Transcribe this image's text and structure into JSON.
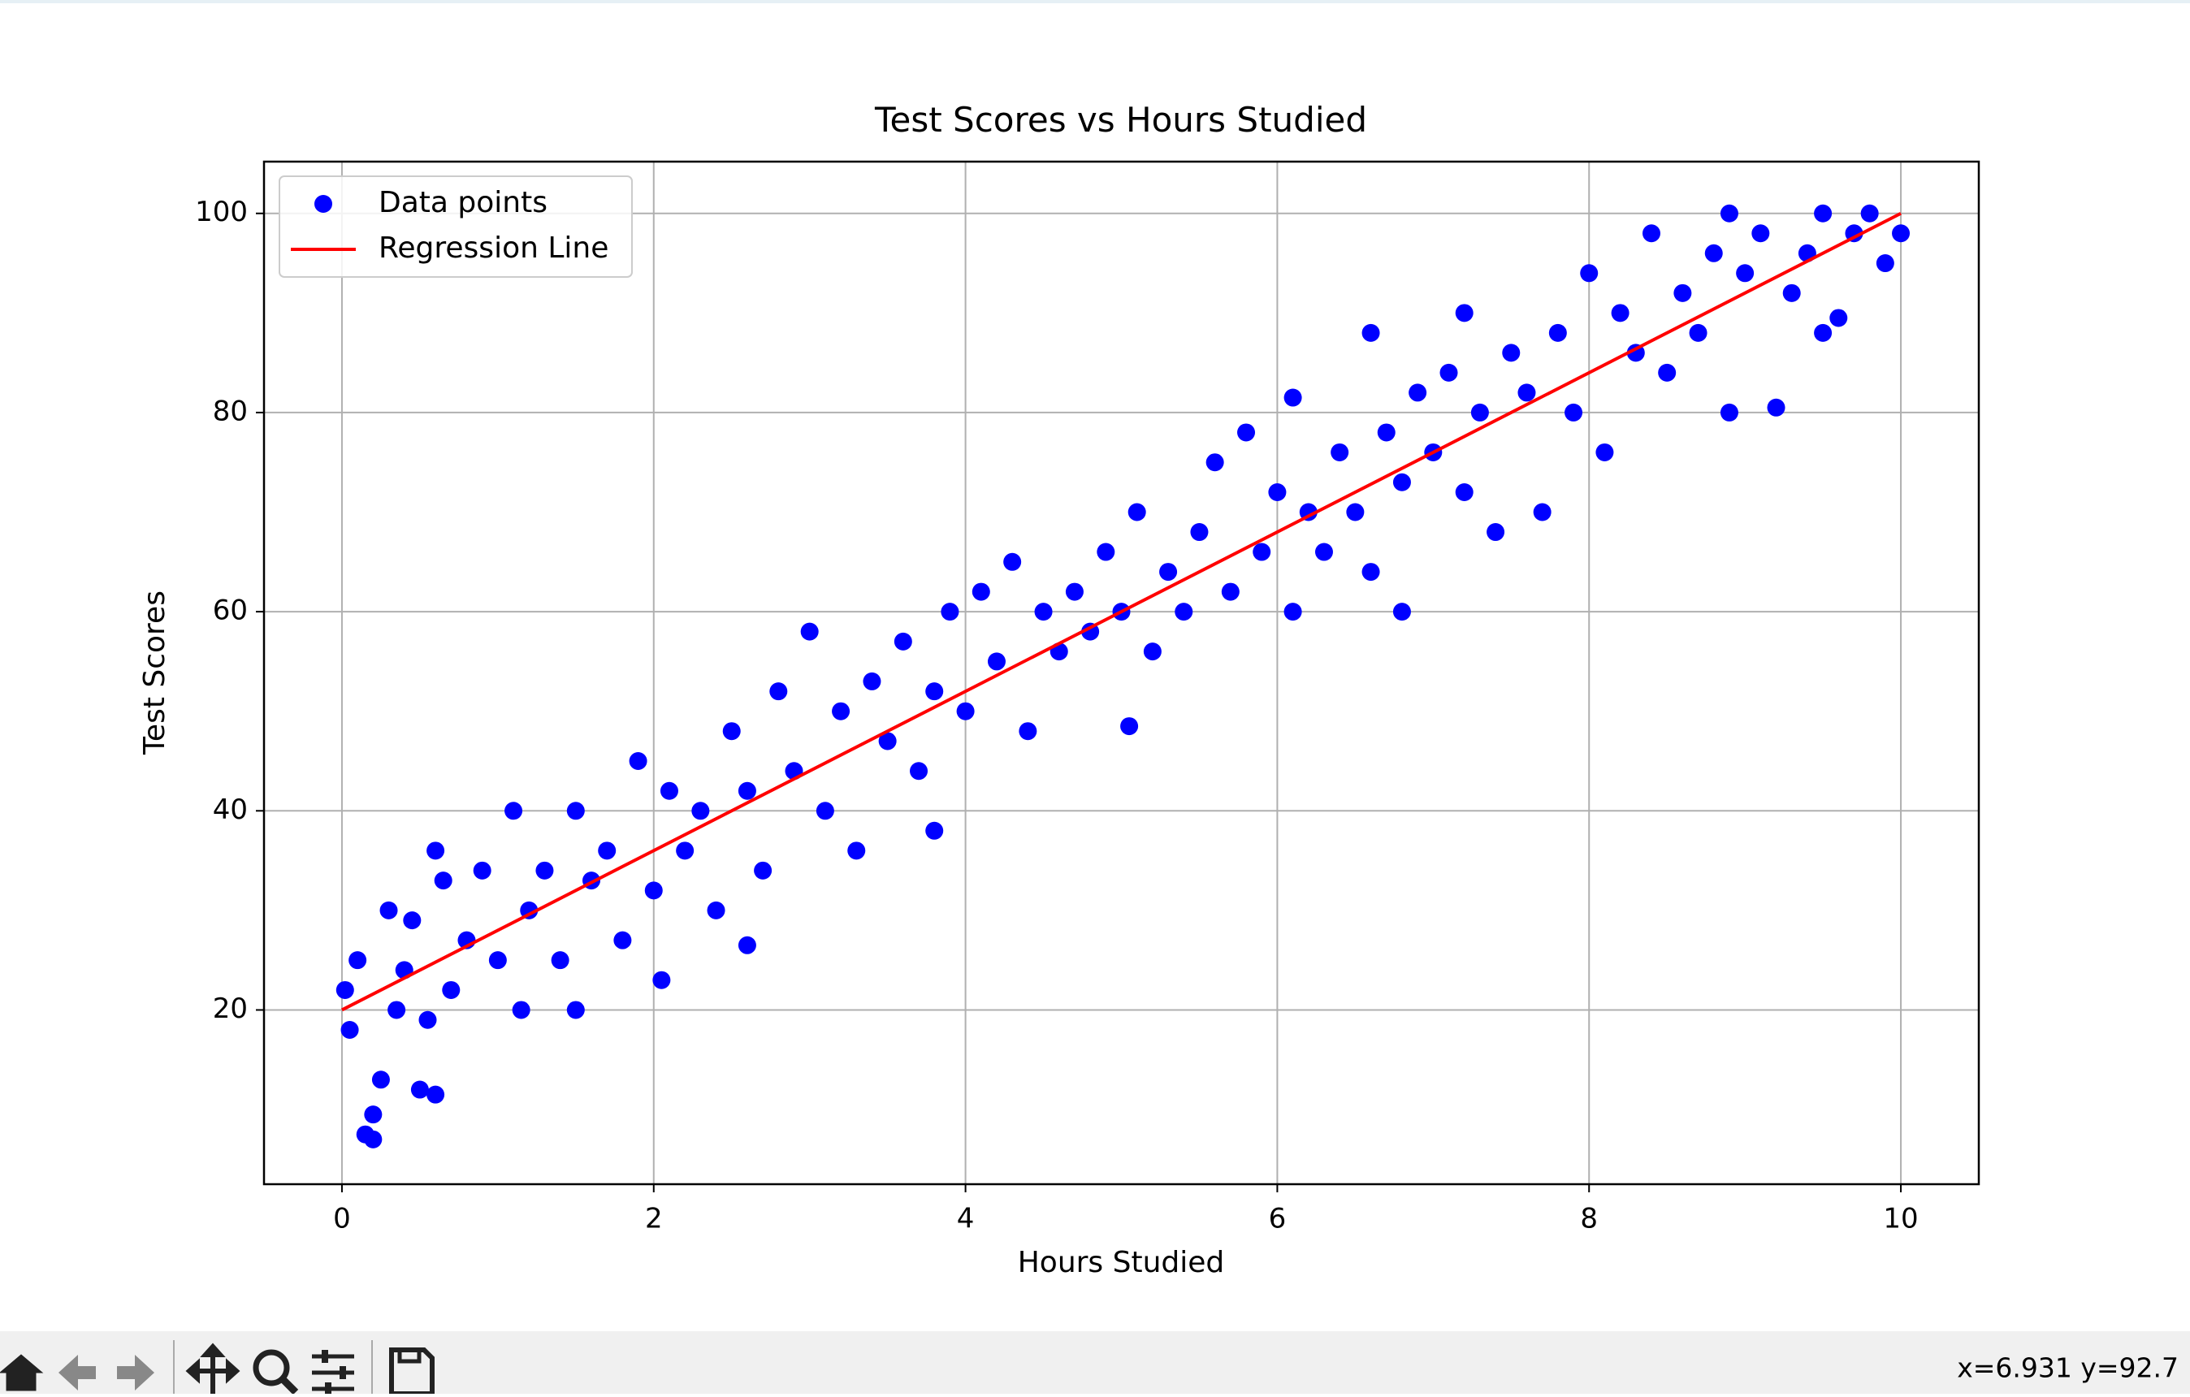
{
  "chart_data": {
    "type": "scatter",
    "title": "Test Scores vs Hours Studied",
    "x_label": "Hours Studied",
    "y_label": "Test Scores",
    "xlim": [
      -0.5,
      10.5
    ],
    "ylim": [
      2.5,
      105.2
    ],
    "xticks": [
      0,
      2,
      4,
      6,
      8,
      10
    ],
    "yticks": [
      20,
      40,
      60,
      80,
      100
    ],
    "grid": true,
    "legend": "upper left",
    "series": [
      {
        "name": "Data points",
        "color": "#0000ff",
        "kind": "scatter",
        "x": [
          0.02,
          0.05,
          0.1,
          0.15,
          0.2,
          0.2,
          0.25,
          0.3,
          0.35,
          0.4,
          0.45,
          0.5,
          0.55,
          0.6,
          0.6,
          0.65,
          0.7,
          0.8,
          0.9,
          1.0,
          1.1,
          1.15,
          1.2,
          1.3,
          1.4,
          1.5,
          1.5,
          1.6,
          1.7,
          1.8,
          1.9,
          2.0,
          2.05,
          2.1,
          2.2,
          2.3,
          2.4,
          2.5,
          2.6,
          2.6,
          2.7,
          2.8,
          2.9,
          3.0,
          3.1,
          3.2,
          3.3,
          3.4,
          3.5,
          3.6,
          3.7,
          3.8,
          3.8,
          3.9,
          4.0,
          4.1,
          4.2,
          4.3,
          4.4,
          4.5,
          4.6,
          4.7,
          4.8,
          4.9,
          5.0,
          5.05,
          5.1,
          5.2,
          5.3,
          5.4,
          5.5,
          5.6,
          5.7,
          5.8,
          5.9,
          6.0,
          6.1,
          6.1,
          6.2,
          6.3,
          6.4,
          6.5,
          6.6,
          6.6,
          6.7,
          6.8,
          6.8,
          6.9,
          7.0,
          7.1,
          7.2,
          7.2,
          7.3,
          7.4,
          7.5,
          7.6,
          7.7,
          7.8,
          7.9,
          8.0,
          8.1,
          8.2,
          8.3,
          8.4,
          8.5,
          8.6,
          8.7,
          8.8,
          8.9,
          8.9,
          9.0,
          9.1,
          9.2,
          9.3,
          9.4,
          9.5,
          9.5,
          9.6,
          9.7,
          9.8,
          9.9,
          10.0
        ],
        "values": [
          22,
          18,
          25,
          7.5,
          7,
          9.5,
          13,
          30,
          20,
          24,
          29,
          12,
          19,
          36,
          11.5,
          33,
          22,
          27,
          34,
          25,
          40,
          20,
          30,
          34,
          25,
          40,
          20,
          33,
          36,
          27,
          45,
          32,
          23,
          42,
          36,
          40,
          30,
          48,
          26.5,
          42,
          34,
          52,
          44,
          58,
          40,
          50,
          36,
          53,
          47,
          57,
          44,
          38,
          52,
          60,
          50,
          62,
          55,
          65,
          48,
          60,
          56,
          62,
          58,
          66,
          60,
          48.5,
          70,
          56,
          64,
          60,
          68,
          75,
          62,
          78,
          66,
          72,
          81.5,
          60,
          70,
          66,
          76,
          70,
          88,
          64,
          78,
          60,
          73,
          82,
          76,
          84,
          90,
          72,
          80,
          68,
          86,
          82,
          70,
          88,
          80,
          94,
          76,
          90,
          86,
          98,
          84,
          92,
          88,
          96,
          100,
          80,
          94,
          98,
          80.5,
          92,
          96,
          100,
          88,
          89.5,
          98,
          100,
          95,
          98
        ]
      },
      {
        "name": "Regression Line",
        "color": "#ff0000",
        "kind": "line",
        "x": [
          0,
          10
        ],
        "values": [
          20,
          100
        ]
      }
    ]
  },
  "ui": {
    "status": "x=6.931 y=92.7"
  }
}
